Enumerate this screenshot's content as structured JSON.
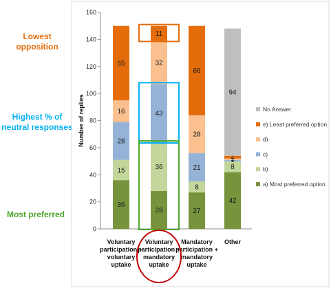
{
  "callouts": {
    "lowest_opposition": {
      "text": "Lowest opposition",
      "color": "#e46c0a"
    },
    "highest_neutral": {
      "text": "Highest % of neutral responses",
      "color": "#00b0f0"
    },
    "most_preferred": {
      "text": "Most preferred",
      "color": "#4ea72e"
    }
  },
  "chart_data": {
    "type": "bar",
    "stacked": true,
    "ylabel": "Number of replies",
    "ylim": [
      0,
      160
    ],
    "yticks": [
      0,
      20,
      40,
      60,
      80,
      100,
      120,
      140,
      160
    ],
    "grid": false,
    "legend_position": "right",
    "categories": [
      [
        "Voluntary",
        "participation +",
        "voluntary",
        "uptake"
      ],
      [
        "Voluntary",
        "participation +",
        "mandatory",
        "uptake"
      ],
      [
        "Mandatory",
        "participation +",
        "mandatory",
        "uptake"
      ],
      [
        "Other"
      ]
    ],
    "series": [
      {
        "name": "a) Most preferred option",
        "color": "#77933c",
        "values": [
          36,
          28,
          27,
          42
        ]
      },
      {
        "name": "b)",
        "color": "#c3d69b",
        "values": [
          15,
          36,
          8,
          8
        ]
      },
      {
        "name": "c)",
        "color": "#95b3d7",
        "values": [
          28,
          43,
          21,
          1
        ]
      },
      {
        "name": "d)",
        "color": "#fac090",
        "values": [
          16,
          32,
          28,
          1
        ]
      },
      {
        "name": "e) Least preferred option",
        "color": "#e46c0a",
        "values": [
          55,
          11,
          66,
          2
        ]
      },
      {
        "name": "No Answer",
        "color": "#bfbfbf",
        "values": [
          0,
          0,
          0,
          94
        ]
      }
    ],
    "data_labels": [
      [
        "36",
        "15",
        "28",
        "16",
        "55",
        ""
      ],
      [
        "28",
        "36",
        "43",
        "32",
        "11",
        ""
      ],
      [
        "27",
        "8",
        "21",
        "28",
        "66",
        ""
      ],
      [
        "42",
        "8",
        "1",
        "1",
        "2",
        "94"
      ]
    ],
    "legend_order": [
      "No Answer",
      "e) Least preferred option",
      "d)",
      "c)",
      "b)",
      "a) Most preferred option"
    ],
    "highlights": [
      {
        "category_index": 1,
        "from": 139,
        "to": 150,
        "color": "#e46c0a"
      },
      {
        "category_index": 1,
        "from": 64,
        "to": 107,
        "color": "#00b0f0"
      },
      {
        "category_index": 1,
        "from": 0,
        "to": 64,
        "color": "#4ea72e"
      }
    ],
    "circled_category_index": 1,
    "circle_color": "#c00000"
  }
}
